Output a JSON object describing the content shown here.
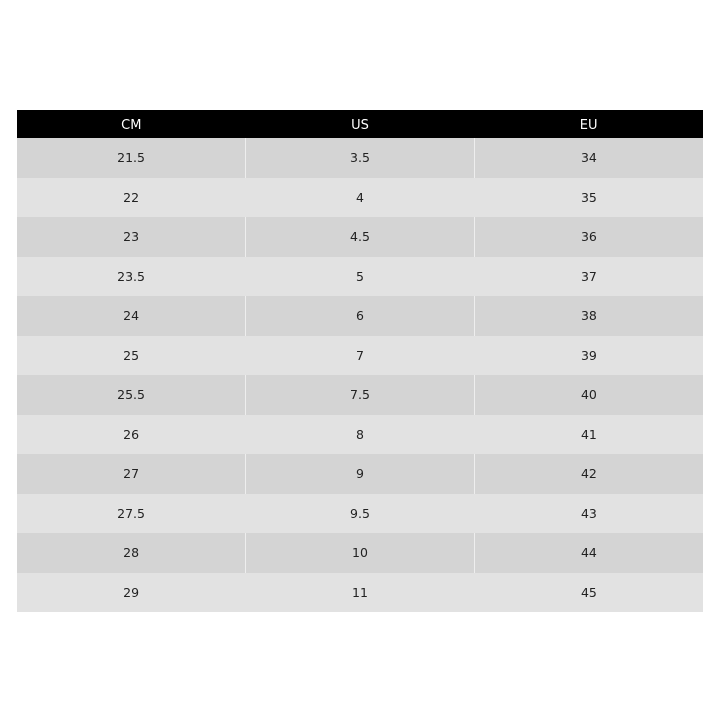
{
  "table": {
    "headers": [
      "CM",
      "US",
      "EU"
    ],
    "rows": [
      [
        "21.5",
        "3.5",
        "34"
      ],
      [
        "22",
        "4",
        "35"
      ],
      [
        "23",
        "4.5",
        "36"
      ],
      [
        "23.5",
        "5",
        "37"
      ],
      [
        "24",
        "6",
        "38"
      ],
      [
        "25",
        "7",
        "39"
      ],
      [
        "25.5",
        "7.5",
        "40"
      ],
      [
        "26",
        "8",
        "41"
      ],
      [
        "27",
        "9",
        "42"
      ],
      [
        "27.5",
        "9.5",
        "43"
      ],
      [
        "28",
        "10",
        "44"
      ],
      [
        "29",
        "11",
        "45"
      ]
    ]
  },
  "colors": {
    "header_bg": "#000000",
    "row_dark": "#d4d4d4",
    "row_light": "#e2e2e2"
  }
}
